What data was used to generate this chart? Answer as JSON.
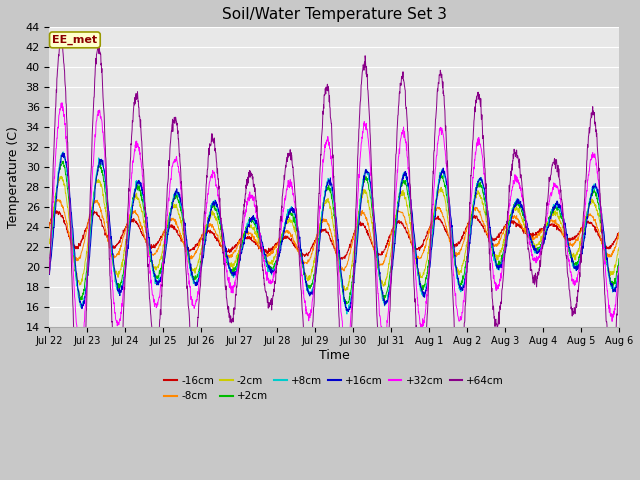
{
  "title": "Soil/Water Temperature Set 3",
  "xlabel": "Time",
  "ylabel": "Temperature (C)",
  "ylim": [
    14,
    44
  ],
  "annotation": "EE_met",
  "bg_color": "#e8e8e8",
  "series": [
    {
      "label": "-16cm",
      "color": "#cc0000",
      "amplitude": 1.2,
      "baseline": 23.0,
      "phase": 0.3,
      "noise": 0.1
    },
    {
      "label": "-8cm",
      "color": "#ff8800",
      "amplitude": 2.0,
      "baseline": 23.0,
      "phase": 0.1,
      "noise": 0.1
    },
    {
      "label": "-2cm",
      "color": "#cccc00",
      "amplitude": 3.5,
      "baseline": 23.0,
      "phase": -0.3,
      "noise": 0.15
    },
    {
      "label": "+2cm",
      "color": "#00bb00",
      "amplitude": 4.5,
      "baseline": 23.0,
      "phase": -0.5,
      "noise": 0.15
    },
    {
      "label": "+8cm",
      "color": "#00cccc",
      "amplitude": 5.0,
      "baseline": 23.0,
      "phase": -0.6,
      "noise": 0.15
    },
    {
      "label": "+16cm",
      "color": "#0000cc",
      "amplitude": 5.0,
      "baseline": 23.0,
      "phase": -0.7,
      "noise": 0.15
    },
    {
      "label": "+32cm",
      "color": "#ff00ff",
      "amplitude": 8.0,
      "baseline": 23.5,
      "phase": -0.4,
      "noise": 0.2
    },
    {
      "label": "+64cm",
      "color": "#880088",
      "amplitude": 12.5,
      "baseline": 23.5,
      "phase": -0.3,
      "noise": 0.3
    }
  ],
  "n_points": 2000,
  "xtick_labels": [
    "Jul 22",
    "Jul 23",
    "Jul 24",
    "Jul 25",
    "Jul 26",
    "Jul 27",
    "Jul 28",
    "Jul 29",
    "Jul 30",
    "Jul 31",
    "Aug 1",
    "Aug 2",
    "Aug 3",
    "Aug 4",
    "Aug 5",
    "Aug 6"
  ],
  "xtick_positions": [
    0,
    1,
    2,
    3,
    4,
    5,
    6,
    7,
    8,
    9,
    10,
    11,
    12,
    13,
    14,
    15
  ],
  "ytick_positions": [
    14,
    16,
    18,
    20,
    22,
    24,
    26,
    28,
    30,
    32,
    34,
    36,
    38,
    40,
    42,
    44
  ],
  "grid_color": "#ffffff",
  "title_fontsize": 11,
  "axis_label_fontsize": 9,
  "tick_fontsize": 8
}
